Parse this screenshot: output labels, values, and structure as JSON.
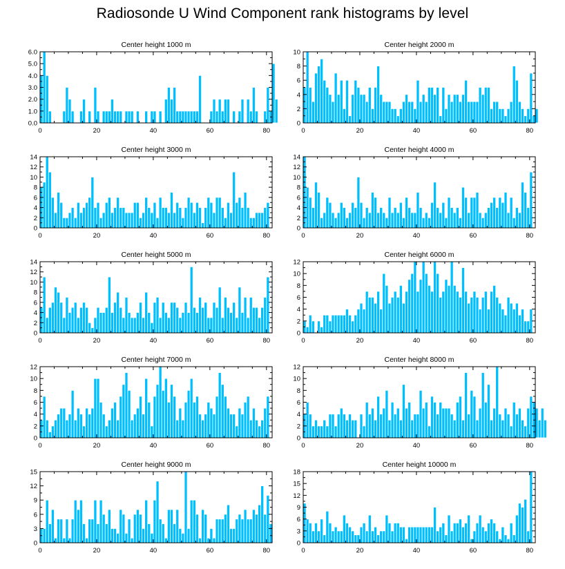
{
  "title": "Radiosonde U Wind Component rank histograms by level",
  "bar_color": "#00bfff",
  "bar_edge_color": "#ffffff",
  "chart_data": [
    {
      "type": "bar",
      "title": "Center height 1000 m",
      "xlim": [
        0,
        82
      ],
      "ylim": [
        0,
        6
      ],
      "xticks": [
        0,
        20,
        40,
        60,
        80
      ],
      "yticks": [
        0,
        1,
        2,
        3,
        4,
        5,
        6
      ],
      "ytick_labels": [
        "0.0",
        "1.0",
        "2.0",
        "3.0",
        "4.0",
        "5.0",
        "6.0"
      ],
      "values": [
        4,
        6,
        4,
        1,
        0,
        0,
        0,
        0,
        1,
        3,
        2,
        1,
        0,
        0,
        1,
        2,
        0,
        1,
        0,
        3,
        1,
        0,
        1,
        1,
        1,
        2,
        1,
        1,
        1,
        0,
        1,
        1,
        1,
        0,
        1,
        0,
        0,
        1,
        0,
        1,
        1,
        0,
        1,
        0,
        2,
        3,
        2,
        3,
        1,
        1,
        1,
        1,
        1,
        1,
        1,
        1,
        4,
        0,
        0,
        0,
        1,
        2,
        1,
        2,
        1,
        2,
        2,
        0,
        1,
        0,
        1,
        2,
        0,
        2,
        1,
        3,
        1,
        0,
        0,
        1,
        3,
        1,
        5,
        2
      ]
    },
    {
      "type": "bar",
      "title": "Center height 2000 m",
      "xlim": [
        0,
        82
      ],
      "ylim": [
        0,
        10
      ],
      "xticks": [
        0,
        20,
        40,
        60,
        80
      ],
      "yticks": [
        0,
        2,
        4,
        6,
        8,
        10
      ],
      "ytick_labels": [
        "0",
        "2",
        "4",
        "6",
        "8",
        "10"
      ],
      "values": [
        5,
        10,
        5,
        3,
        7,
        8,
        9,
        6,
        5,
        4,
        3,
        7,
        4,
        6,
        2,
        6,
        1,
        4,
        6,
        5,
        4,
        4,
        3,
        5,
        2,
        5,
        8,
        4,
        3,
        3,
        3,
        2,
        2,
        1,
        2,
        3,
        4,
        3,
        3,
        2,
        6,
        3,
        4,
        3,
        5,
        5,
        4,
        5,
        1,
        5,
        2,
        4,
        3,
        4,
        4,
        3,
        4,
        6,
        3,
        3,
        3,
        3,
        5,
        4,
        5,
        5,
        2,
        3,
        3,
        2,
        2,
        1,
        2,
        3,
        8,
        6,
        3,
        2,
        1,
        2,
        7,
        1,
        2
      ]
    },
    {
      "type": "bar",
      "title": "Center height 3000 m",
      "xlim": [
        0,
        82
      ],
      "ylim": [
        0,
        14
      ],
      "xticks": [
        0,
        20,
        40,
        60,
        80
      ],
      "yticks": [
        0,
        2,
        4,
        6,
        8,
        10,
        12,
        14
      ],
      "ytick_labels": [
        "0",
        "2",
        "4",
        "6",
        "8",
        "10",
        "12",
        "14"
      ],
      "values": [
        8,
        9,
        14,
        11,
        6,
        3,
        7,
        5,
        2,
        2,
        3,
        4,
        2,
        5,
        3,
        4,
        5,
        6,
        10,
        4,
        5,
        2,
        3,
        5,
        6,
        3,
        4,
        6,
        4,
        4,
        3,
        3,
        3,
        5,
        5,
        2,
        3,
        6,
        4,
        3,
        5,
        2,
        6,
        4,
        4,
        3,
        7,
        3,
        5,
        4,
        2,
        4,
        6,
        5,
        3,
        5,
        4,
        1,
        4,
        6,
        5,
        3,
        6,
        6,
        4,
        2,
        5,
        3,
        11,
        5,
        6,
        4,
        7,
        4,
        2,
        2,
        3,
        3,
        3,
        4,
        5
      ]
    },
    {
      "type": "bar",
      "title": "Center height 4000 m",
      "xlim": [
        0,
        82
      ],
      "ylim": [
        0,
        14
      ],
      "xticks": [
        0,
        20,
        40,
        60,
        80
      ],
      "yticks": [
        0,
        2,
        4,
        6,
        8,
        10,
        12,
        14
      ],
      "ytick_labels": [
        "0",
        "2",
        "4",
        "6",
        "8",
        "10",
        "12",
        "14"
      ],
      "values": [
        14,
        8,
        6,
        4,
        9,
        7,
        2,
        3,
        6,
        5,
        3,
        2,
        3,
        5,
        4,
        2,
        3,
        5,
        4,
        10,
        5,
        2,
        4,
        3,
        7,
        6,
        3,
        4,
        3,
        2,
        6,
        3,
        4,
        3,
        5,
        2,
        6,
        4,
        3,
        3,
        7,
        4,
        2,
        3,
        2,
        5,
        9,
        4,
        3,
        5,
        2,
        6,
        4,
        3,
        4,
        2,
        8,
        6,
        3,
        6,
        6,
        7,
        3,
        2,
        3,
        4,
        5,
        6,
        4,
        6,
        5,
        7,
        3,
        6,
        2,
        4,
        3,
        9,
        7,
        4,
        11
      ]
    },
    {
      "type": "bar",
      "title": "Center height 5000 m",
      "xlim": [
        0,
        82
      ],
      "ylim": [
        0,
        14
      ],
      "xticks": [
        0,
        20,
        40,
        60,
        80
      ],
      "yticks": [
        0,
        2,
        4,
        6,
        8,
        10,
        12,
        14
      ],
      "ytick_labels": [
        "0",
        "2",
        "4",
        "6",
        "8",
        "10",
        "12",
        "14"
      ],
      "values": [
        5,
        11,
        3,
        5,
        6,
        9,
        8,
        6,
        3,
        7,
        4,
        5,
        6,
        3,
        5,
        6,
        5,
        2,
        1,
        3,
        5,
        4,
        4,
        5,
        11,
        4,
        6,
        8,
        5,
        3,
        7,
        4,
        3,
        3,
        4,
        6,
        3,
        8,
        4,
        2,
        6,
        7,
        3,
        6,
        4,
        3,
        6,
        6,
        5,
        3,
        4,
        6,
        4,
        13,
        5,
        4,
        7,
        5,
        6,
        3,
        3,
        6,
        5,
        9,
        3,
        7,
        5,
        4,
        6,
        3,
        9,
        4,
        7,
        3,
        7,
        5,
        5,
        3,
        5,
        7,
        11
      ]
    },
    {
      "type": "bar",
      "title": "Center height 6000 m",
      "xlim": [
        0,
        82
      ],
      "ylim": [
        0,
        12
      ],
      "xticks": [
        0,
        20,
        40,
        60,
        80
      ],
      "yticks": [
        0,
        2,
        4,
        6,
        8,
        10,
        12
      ],
      "ytick_labels": [
        "0",
        "2",
        "4",
        "6",
        "8",
        "10",
        "12"
      ],
      "values": [
        2,
        1,
        3,
        2,
        0,
        2,
        1,
        3,
        3,
        2,
        3,
        3,
        3,
        3,
        3,
        4,
        3,
        2,
        3,
        4,
        5,
        4,
        7,
        6,
        6,
        5,
        7,
        4,
        10,
        8,
        5,
        6,
        7,
        6,
        8,
        5,
        7,
        9,
        10,
        12,
        7,
        9,
        12,
        10,
        8,
        7,
        12,
        10,
        6,
        7,
        9,
        8,
        12,
        8,
        7,
        6,
        11,
        7,
        5,
        6,
        7,
        6,
        4,
        6,
        7,
        4,
        7,
        8,
        6,
        5,
        4,
        3,
        6,
        5,
        4,
        5,
        3,
        4,
        2,
        2,
        4
      ]
    },
    {
      "type": "bar",
      "title": "Center height 7000 m",
      "xlim": [
        0,
        82
      ],
      "ylim": [
        0,
        12
      ],
      "xticks": [
        0,
        20,
        40,
        60,
        80
      ],
      "yticks": [
        0,
        2,
        4,
        6,
        8,
        10,
        12
      ],
      "ytick_labels": [
        "0",
        "2",
        "4",
        "6",
        "8",
        "10",
        "12"
      ],
      "values": [
        3,
        7,
        3,
        1,
        2,
        3,
        4,
        5,
        5,
        3,
        4,
        8,
        3,
        5,
        4,
        2,
        5,
        4,
        5,
        10,
        10,
        6,
        4,
        2,
        3,
        5,
        6,
        3,
        7,
        9,
        11,
        8,
        3,
        4,
        5,
        7,
        4,
        10,
        6,
        2,
        7,
        9,
        12,
        8,
        10,
        6,
        9,
        7,
        3,
        5,
        3,
        6,
        8,
        10,
        6,
        7,
        4,
        3,
        4,
        6,
        5,
        4,
        7,
        11,
        9,
        7,
        5,
        4,
        4,
        2,
        5,
        4,
        6,
        7,
        3,
        5,
        3,
        2,
        3,
        5,
        7
      ]
    },
    {
      "type": "bar",
      "title": "Center height 8000 m",
      "xlim": [
        0,
        82
      ],
      "ylim": [
        0,
        12
      ],
      "xticks": [
        0,
        20,
        40,
        60,
        80
      ],
      "yticks": [
        0,
        2,
        4,
        6,
        8,
        10,
        12
      ],
      "ytick_labels": [
        "0",
        "2",
        "4",
        "6",
        "8",
        "10",
        "12"
      ],
      "values": [
        4,
        6,
        4,
        2,
        3,
        2,
        2,
        3,
        2,
        4,
        4,
        2,
        4,
        5,
        4,
        3,
        4,
        3,
        3,
        0,
        4,
        2,
        6,
        4,
        5,
        3,
        7,
        4,
        5,
        8,
        3,
        6,
        4,
        5,
        3,
        9,
        5,
        6,
        3,
        4,
        4,
        8,
        5,
        6,
        2,
        7,
        6,
        4,
        6,
        5,
        5,
        5,
        4,
        3,
        6,
        7,
        3,
        11,
        4,
        8,
        7,
        3,
        5,
        11,
        6,
        9,
        3,
        5,
        12,
        4,
        3,
        5,
        4,
        2,
        6,
        4,
        5,
        3,
        2,
        5,
        7,
        6,
        5,
        3,
        5,
        3
      ]
    },
    {
      "type": "bar",
      "title": "Center height 9000 m",
      "xlim": [
        0,
        82
      ],
      "ylim": [
        0,
        15
      ],
      "xticks": [
        0,
        20,
        40,
        60,
        80
      ],
      "yticks": [
        0,
        3,
        6,
        9,
        12,
        15
      ],
      "ytick_labels": [
        "0",
        "3",
        "6",
        "9",
        "12",
        "15"
      ],
      "values": [
        3,
        3,
        9,
        4,
        7,
        1,
        5,
        5,
        1,
        5,
        1,
        5,
        9,
        7,
        9,
        4,
        1,
        5,
        5,
        9,
        4,
        9,
        6,
        4,
        7,
        3,
        3,
        2,
        7,
        6,
        2,
        5,
        1,
        6,
        7,
        6,
        3,
        9,
        4,
        2,
        9,
        13,
        5,
        4,
        1,
        7,
        7,
        4,
        7,
        3,
        2,
        15,
        3,
        9,
        9,
        6,
        1,
        7,
        6,
        1,
        3,
        1,
        5,
        5,
        5,
        6,
        8,
        3,
        3,
        5,
        6,
        5,
        7,
        5,
        5,
        7,
        6,
        8,
        12,
        6,
        10,
        4
      ]
    },
    {
      "type": "bar",
      "title": "Center height 10000 m",
      "xlim": [
        0,
        82
      ],
      "ylim": [
        0,
        18
      ],
      "xticks": [
        0,
        20,
        40,
        60,
        80
      ],
      "yticks": [
        0,
        3,
        6,
        9,
        12,
        15,
        18
      ],
      "ytick_labels": [
        "0",
        "3",
        "6",
        "9",
        "12",
        "15",
        "18"
      ],
      "values": [
        10,
        6,
        5,
        3,
        5,
        3,
        6,
        2,
        8,
        5,
        3,
        4,
        3,
        3,
        7,
        5,
        4,
        3,
        2,
        2,
        4,
        5,
        3,
        7,
        3,
        4,
        2,
        3,
        3,
        7,
        5,
        3,
        5,
        5,
        4,
        4,
        1,
        4,
        4,
        4,
        4,
        4,
        4,
        4,
        4,
        4,
        9,
        3,
        4,
        5,
        2,
        7,
        3,
        5,
        5,
        6,
        4,
        5,
        7,
        1,
        3,
        5,
        7,
        4,
        3,
        5,
        6,
        5,
        3,
        1,
        4,
        2,
        1,
        5,
        2,
        7,
        10,
        9,
        11,
        3,
        18
      ]
    }
  ]
}
